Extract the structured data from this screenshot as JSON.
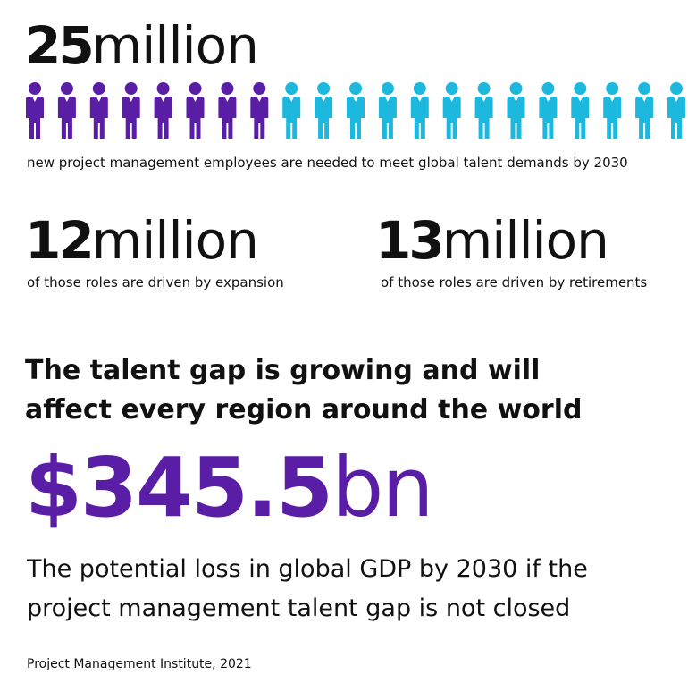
{
  "headline": {
    "number": "25",
    "unit": "million",
    "caption": "new project management employees are needed to meet global talent demands by 2030"
  },
  "stats": [
    {
      "number": "12",
      "unit": "million",
      "caption": "of those roles are driven by expansion"
    },
    {
      "number": "13",
      "unit": "million",
      "caption": "of those roles are driven by retirements"
    }
  ],
  "heading": "The talent gap is growing and will affect every region around the world",
  "highlight": {
    "number": "$345.5",
    "unit": "bn",
    "caption": "The potential loss in global GDP by 2030 if the project management talent gap is not closed"
  },
  "source": "Project Management Institute, 2021"
}
